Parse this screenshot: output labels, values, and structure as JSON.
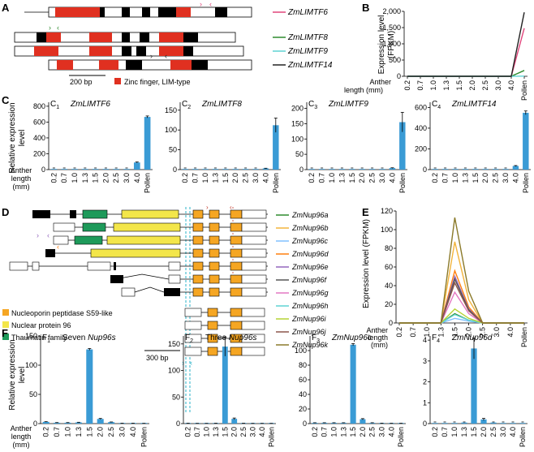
{
  "panels": {
    "A": {
      "letter": "A",
      "genes": [
        "ZmLIMTF6",
        "ZmLIMTF8",
        "ZmLIMTF9",
        "ZmLIMTF14"
      ],
      "colors": [
        "#e0457b",
        "#2e8b2e",
        "#5fd3d3",
        "#222222"
      ],
      "scalebar": "200 bp",
      "domain_legend": "Zinc finger, LIM-type",
      "domain_color": "#e03020"
    },
    "B": {
      "letter": "B",
      "ylabel": [
        "Expression level",
        "(FPKM)"
      ],
      "xlabel": [
        "Anther",
        "length (mm)"
      ]
    },
    "C": {
      "letter": "C",
      "ylabel": [
        "Relative expression",
        "level"
      ],
      "xlabel": [
        "Anther",
        "length",
        "(mm)"
      ]
    },
    "D": {
      "letter": "D",
      "genes": [
        "ZmNup96a",
        "ZmNup96b",
        "ZmNup96c",
        "ZmNup96d",
        "ZmNup96e",
        "ZmNup96f",
        "ZmNup96g",
        "ZmNup96h",
        "ZmNup96i",
        "ZmNup96j",
        "ZmNup96k"
      ],
      "colors": [
        "#2e8b2e",
        "#f2b43c",
        "#80c0ff",
        "#ff7f0e",
        "#9467bd",
        "#555555",
        "#e377c2",
        "#5fd3d3",
        "#b5d334",
        "#8c564b",
        "#8b7a2a"
      ],
      "scalebar": "300 bp",
      "legend": [
        {
          "label": "Nucleoporin peptidase S59-like",
          "color": "#f5a623"
        },
        {
          "label": "Nuclear protein 96",
          "color": "#f3e64a"
        },
        {
          "label": "Thaumatin family",
          "color": "#1e9a5a"
        }
      ]
    },
    "E": {
      "letter": "E",
      "ylabel": "Expression level (FPKM)",
      "xlabel": [
        "Anther",
        "length",
        "(mm)"
      ]
    },
    "F": {
      "letter": "F",
      "ylabel": [
        "Relative expression",
        "level"
      ],
      "xlabel": [
        "Anther",
        "length",
        "(mm)"
      ]
    }
  },
  "chart_data": [
    {
      "id": "B",
      "type": "line",
      "categories": [
        "0.2",
        "0.7",
        "1.0",
        "1.3",
        "1.5",
        "2.0",
        "2.5",
        "3.0",
        "4.0",
        "Pollen"
      ],
      "ylim": [
        0,
        2000
      ],
      "yticks": [
        0,
        500,
        1000,
        1500,
        2000
      ],
      "series": [
        {
          "name": "ZmLIMTF6",
          "color": "#e0457b",
          "values": [
            0,
            0,
            0,
            0,
            0,
            0,
            0,
            0,
            0,
            1480
          ]
        },
        {
          "name": "ZmLIMTF8",
          "color": "#2e8b2e",
          "values": [
            0,
            0,
            0,
            0,
            0,
            0,
            0,
            0,
            0,
            180
          ]
        },
        {
          "name": "ZmLIMTF9",
          "color": "#5fd3d3",
          "values": [
            0,
            0,
            0,
            0,
            0,
            0,
            0,
            0,
            0,
            5
          ]
        },
        {
          "name": "ZmLIMTF14",
          "color": "#222222",
          "values": [
            0,
            0,
            0,
            0,
            0,
            0,
            0,
            0,
            0,
            1970
          ]
        }
      ]
    },
    {
      "id": "C1",
      "type": "bar",
      "tag": "C",
      "sub": "1",
      "title": "ZmLIMTF6",
      "title_italic": true,
      "categories": [
        "0.2",
        "0.7",
        "1.0",
        "1.3",
        "1.5",
        "2.0",
        "2.5",
        "3.0",
        "4.0",
        "Pollen"
      ],
      "values": [
        0,
        0,
        0,
        0,
        0,
        0,
        0,
        0,
        90,
        665
      ],
      "errors": [
        0,
        0,
        0,
        0,
        0,
        0,
        0,
        0,
        6,
        12
      ],
      "ylim": [
        0,
        850
      ],
      "yticks": [
        0,
        200,
        400,
        600,
        800
      ],
      "color": "#3a9bd5"
    },
    {
      "id": "C2",
      "type": "bar",
      "tag": "C",
      "sub": "2",
      "title": "ZmLIMTF8",
      "title_italic": true,
      "categories": [
        "0.2",
        "0.7",
        "1.0",
        "1.3",
        "1.5",
        "2.0",
        "2.5",
        "3.0",
        "4.0",
        "Pollen"
      ],
      "values": [
        0,
        0,
        0,
        0,
        0,
        0,
        0,
        0,
        3,
        112
      ],
      "errors": [
        0,
        0,
        0,
        0,
        0,
        0,
        0,
        0,
        0.5,
        18
      ],
      "ylim": [
        0,
        170
      ],
      "yticks": [
        0,
        50,
        100,
        150
      ],
      "color": "#3a9bd5"
    },
    {
      "id": "C3",
      "type": "bar",
      "tag": "C",
      "sub": "3",
      "title": "ZmLIMTF9",
      "title_italic": true,
      "categories": [
        "0.2",
        "0.7",
        "1.0",
        "1.3",
        "1.5",
        "2.0",
        "2.5",
        "3.0",
        "4.0",
        "Pollen"
      ],
      "values": [
        0,
        0,
        0,
        0,
        0,
        0,
        0,
        0,
        5,
        155
      ],
      "errors": [
        0,
        0,
        0,
        0,
        0,
        0,
        0,
        0,
        1,
        32
      ],
      "ylim": [
        0,
        220
      ],
      "yticks": [
        0,
        50,
        100,
        150,
        200
      ],
      "color": "#3a9bd5"
    },
    {
      "id": "C4",
      "type": "bar",
      "tag": "C",
      "sub": "4",
      "title": "ZmLIMTF14",
      "title_italic": true,
      "categories": [
        "0.2",
        "0.7",
        "1.0",
        "1.3",
        "1.5",
        "2.0",
        "2.5",
        "3.0",
        "4.0",
        "Pollen"
      ],
      "values": [
        0,
        0,
        0,
        0,
        0,
        0,
        0,
        0,
        35,
        548
      ],
      "errors": [
        0,
        0,
        0,
        0,
        0,
        0,
        0,
        0,
        4,
        18
      ],
      "ylim": [
        0,
        650
      ],
      "yticks": [
        0,
        200,
        400,
        600
      ],
      "color": "#3a9bd5"
    },
    {
      "id": "E",
      "type": "line",
      "categories": [
        "0.2",
        "0.7",
        "1.0",
        "1.3",
        "1.5",
        "2.0",
        "2.5",
        "3.0",
        "4.0",
        "Pollen"
      ],
      "ylim": [
        0,
        120
      ],
      "yticks": [
        0,
        20,
        40,
        60,
        80,
        100,
        120
      ],
      "series": [
        {
          "name": "ZmNup96a",
          "color": "#2e8b2e",
          "values": [
            0,
            0,
            0,
            0,
            10,
            3,
            0,
            0,
            0,
            0
          ]
        },
        {
          "name": "ZmNup96b",
          "color": "#f2b43c",
          "values": [
            0,
            0,
            0,
            0,
            87,
            25,
            0,
            0,
            0,
            0
          ]
        },
        {
          "name": "ZmNup96c",
          "color": "#80c0ff",
          "values": [
            0,
            0,
            0,
            0,
            5,
            2,
            0,
            0,
            0,
            0
          ]
        },
        {
          "name": "ZmNup96d",
          "color": "#ff7f0e",
          "values": [
            0,
            0,
            0,
            0,
            56,
            17,
            0,
            0,
            0,
            0
          ]
        },
        {
          "name": "ZmNup96e",
          "color": "#9467bd",
          "values": [
            0,
            0,
            0,
            0,
            50,
            15,
            0,
            0,
            0,
            0
          ]
        },
        {
          "name": "ZmNup96f",
          "color": "#555555",
          "values": [
            0,
            0,
            0,
            0,
            47,
            14,
            0,
            0,
            0,
            0
          ]
        },
        {
          "name": "ZmNup96g",
          "color": "#e377c2",
          "values": [
            0,
            0,
            0,
            0,
            33,
            10,
            0,
            0,
            0,
            0
          ]
        },
        {
          "name": "ZmNup96h",
          "color": "#5fd3d3",
          "values": [
            0,
            0,
            0,
            0,
            9,
            3,
            0,
            0,
            0,
            0
          ]
        },
        {
          "name": "ZmNup96i",
          "color": "#b5d334",
          "values": [
            0,
            0,
            0,
            0,
            15,
            5,
            0,
            0,
            0,
            0
          ]
        },
        {
          "name": "ZmNup96j",
          "color": "#8c564b",
          "values": [
            0,
            0,
            0,
            0,
            43,
            13,
            0,
            0,
            0,
            0
          ]
        },
        {
          "name": "ZmNup96k",
          "color": "#8b7a2a",
          "values": [
            0,
            0,
            0,
            0,
            113,
            34,
            0,
            0,
            0,
            0
          ]
        }
      ]
    },
    {
      "id": "F1",
      "type": "bar",
      "tag": "F",
      "sub": "1",
      "title": "Seven ",
      "title_tail": "Nup96s",
      "title_italic": false,
      "categories": [
        "0.2",
        "0.7",
        "1.0",
        "1.3",
        "1.5",
        "2.0",
        "2.5",
        "3.0",
        "4.0",
        "Pollen"
      ],
      "values": [
        3,
        1.5,
        1.5,
        2,
        127,
        8,
        2.5,
        0.5,
        0.5,
        0.3
      ],
      "errors": [
        0.3,
        0.3,
        0.3,
        0.3,
        1.5,
        0.8,
        0.3,
        0.1,
        0.1,
        0.1
      ],
      "ylim": [
        0,
        150
      ],
      "yticks": [
        0,
        50,
        100,
        150
      ],
      "color": "#3a9bd5"
    },
    {
      "id": "F2",
      "type": "bar",
      "tag": "F",
      "sub": "2",
      "title": "Three ",
      "title_tail": "Nup96s",
      "title_italic": false,
      "categories": [
        "0.2",
        "0.7",
        "1.0",
        "1.3",
        "1.5",
        "2.0",
        "2.5",
        "3.0",
        "4.0",
        "Pollen"
      ],
      "values": [
        0.5,
        0.3,
        0.3,
        0.5,
        145,
        9,
        0.5,
        0.3,
        0.3,
        0.3
      ],
      "errors": [
        0.1,
        0.1,
        0.1,
        0.1,
        18,
        1.5,
        0.1,
        0.1,
        0.1,
        0.1
      ],
      "ylim": [
        0,
        165
      ],
      "yticks": [
        0,
        50,
        100,
        150
      ],
      "color": "#3a9bd5"
    },
    {
      "id": "F3",
      "type": "bar",
      "tag": "F",
      "sub": "3",
      "title": "ZmNup96c",
      "title_italic": true,
      "categories": [
        "0.2",
        "0.7",
        "1.0",
        "1.3",
        "1.5",
        "2.0",
        "2.5",
        "3.0",
        "4.0",
        "Pollen"
      ],
      "values": [
        1,
        1,
        1,
        1,
        108,
        6,
        1,
        0.5,
        0.3,
        0.3
      ],
      "errors": [
        0.2,
        0.2,
        0.2,
        0.2,
        1.5,
        0.8,
        0.2,
        0.1,
        0.1,
        0.1
      ],
      "ylim": [
        0,
        120
      ],
      "yticks": [
        0,
        20,
        40,
        60,
        80,
        100
      ],
      "color": "#3a9bd5"
    },
    {
      "id": "F4",
      "type": "bar",
      "tag": "F",
      "sub": "4",
      "title": "ZmNup96d",
      "title_italic": true,
      "categories": [
        "0.2",
        "0.7",
        "1.0",
        "1.3",
        "1.5",
        "2.0",
        "2.5",
        "3.0",
        "4.0",
        "Pollen"
      ],
      "values": [
        0.02,
        0.02,
        0.02,
        0.05,
        3.6,
        0.2,
        0.05,
        0.02,
        0.02,
        0.02
      ],
      "errors": [
        0,
        0,
        0,
        0,
        0.5,
        0.05,
        0,
        0,
        0,
        0
      ],
      "ylim": [
        0,
        4.2
      ],
      "yticks": [
        0,
        1,
        2,
        3,
        4
      ],
      "color": "#3a9bd5"
    }
  ]
}
